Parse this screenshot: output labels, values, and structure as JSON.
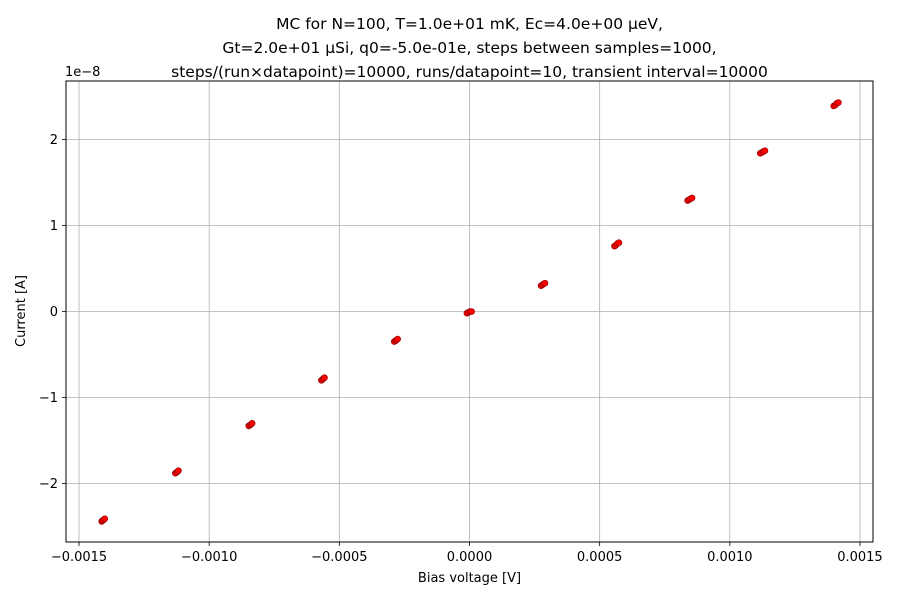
{
  "chart_data": {
    "type": "scatter",
    "title_lines": [
      "MC for N=100, T=1.0e+01 mK, Ec=4.0e+00 μeV,",
      "Gt=2.0e+01 μSi, q0=-5.0e-01e, steps between samples=1000,",
      "steps/(run×datapoint)=10000, runs/datapoint=10, transient interval=10000"
    ],
    "xlabel": "Bias voltage [V]",
    "ylabel": "Current [A]",
    "y_offset_label": "1e−8",
    "xlim": [
      -0.00155,
      0.00155
    ],
    "ylim": [
      -2.68,
      2.68
    ],
    "y_scale_exponent": -8,
    "grid": true,
    "marker_color": "#ff0000",
    "marker_edge_color": "#8b0000",
    "x_ticks": [
      {
        "value": -0.0015,
        "label": "−0.0015"
      },
      {
        "value": -0.001,
        "label": "−0.0010"
      },
      {
        "value": -0.0005,
        "label": "−0.0005"
      },
      {
        "value": 0,
        "label": "0.0000"
      },
      {
        "value": 0.0005,
        "label": "0.0005"
      },
      {
        "value": 0.001,
        "label": "0.0010"
      },
      {
        "value": 0.0015,
        "label": "0.0015"
      }
    ],
    "y_ticks": [
      {
        "value": -2,
        "label": "−2"
      },
      {
        "value": -1,
        "label": "−1"
      },
      {
        "value": 0,
        "label": "0"
      },
      {
        "value": 1,
        "label": "1"
      },
      {
        "value": 2,
        "label": "2"
      }
    ],
    "points": [
      {
        "x": -0.001413,
        "y": -2.44
      },
      {
        "x": -0.001409,
        "y": -2.43
      },
      {
        "x": -0.001405,
        "y": -2.42
      },
      {
        "x": -0.001401,
        "y": -2.41
      },
      {
        "x": -0.00113,
        "y": -1.88
      },
      {
        "x": -0.001125,
        "y": -1.87
      },
      {
        "x": -0.001121,
        "y": -1.86
      },
      {
        "x": -0.001118,
        "y": -1.85
      },
      {
        "x": -0.000848,
        "y": -1.33
      },
      {
        "x": -0.000843,
        "y": -1.32
      },
      {
        "x": -0.000839,
        "y": -1.31
      },
      {
        "x": -0.000835,
        "y": -1.3
      },
      {
        "x": -0.000569,
        "y": -0.8
      },
      {
        "x": -0.000565,
        "y": -0.79
      },
      {
        "x": -0.000561,
        "y": -0.78
      },
      {
        "x": -0.000557,
        "y": -0.77
      },
      {
        "x": -0.000289,
        "y": -0.35
      },
      {
        "x": -0.000284,
        "y": -0.34
      },
      {
        "x": -0.00028,
        "y": -0.33
      },
      {
        "x": -0.000276,
        "y": -0.32
      },
      {
        "x": -1e-05,
        "y": -0.02
      },
      {
        "x": -4e-06,
        "y": -0.01
      },
      {
        "x": 2e-06,
        "y": 0.0
      },
      {
        "x": 8e-06,
        "y": 0.0
      },
      {
        "x": 0.000275,
        "y": 0.3
      },
      {
        "x": 0.00028,
        "y": 0.31
      },
      {
        "x": 0.000285,
        "y": 0.32
      },
      {
        "x": 0.00029,
        "y": 0.33
      },
      {
        "x": 0.000557,
        "y": 0.76
      },
      {
        "x": 0.000562,
        "y": 0.77
      },
      {
        "x": 0.000568,
        "y": 0.79
      },
      {
        "x": 0.000574,
        "y": 0.8
      },
      {
        "x": 0.000838,
        "y": 1.29
      },
      {
        "x": 0.000843,
        "y": 1.3
      },
      {
        "x": 0.000849,
        "y": 1.31
      },
      {
        "x": 0.000855,
        "y": 1.32
      },
      {
        "x": 0.001117,
        "y": 1.84
      },
      {
        "x": 0.001123,
        "y": 1.85
      },
      {
        "x": 0.001129,
        "y": 1.86
      },
      {
        "x": 0.001135,
        "y": 1.87
      },
      {
        "x": 0.001399,
        "y": 2.39
      },
      {
        "x": 0.001405,
        "y": 2.4
      },
      {
        "x": 0.001411,
        "y": 2.42
      },
      {
        "x": 0.001417,
        "y": 2.43
      }
    ]
  }
}
